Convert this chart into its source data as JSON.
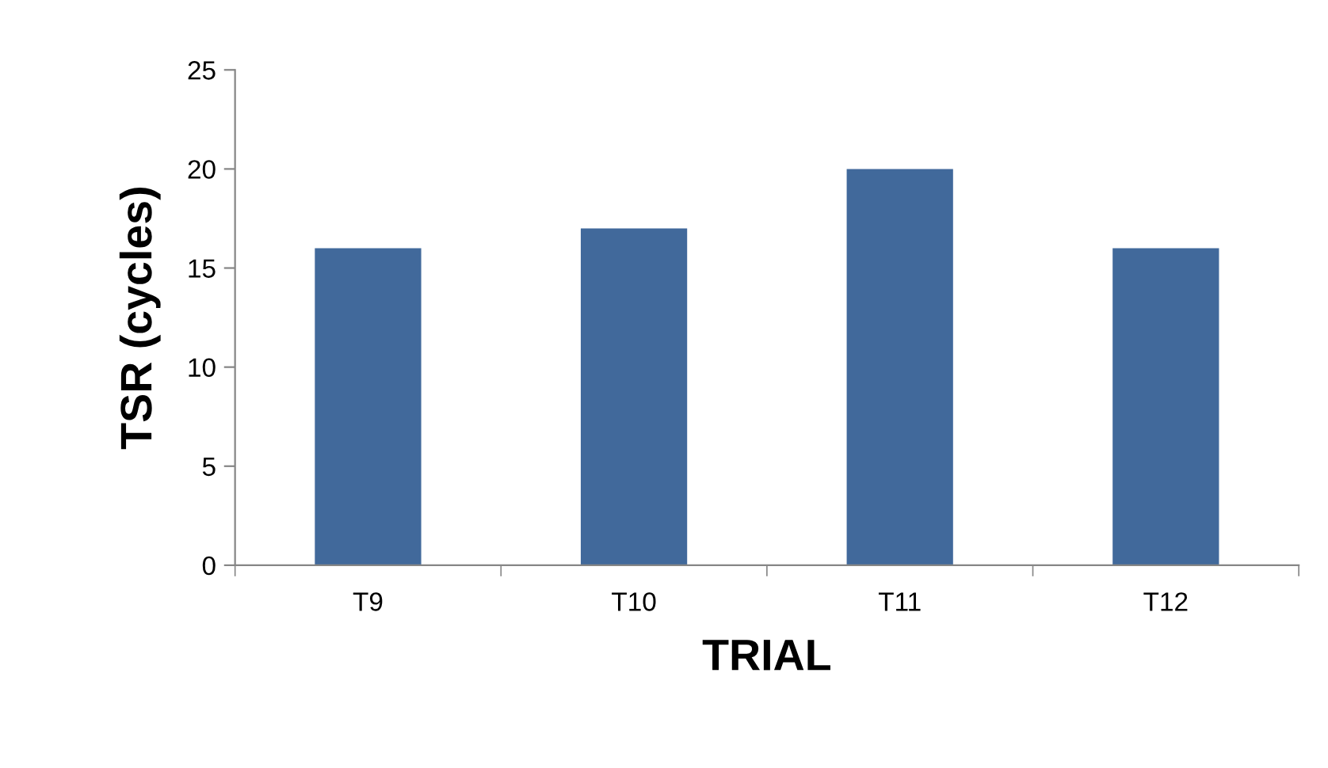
{
  "chart_data": {
    "type": "bar",
    "xlabel": "TRIAL",
    "ylabel": "TSR (cycles)",
    "categories": [
      "T9",
      "T10",
      "T11",
      "T12"
    ],
    "series": [
      {
        "color": "#41699b",
        "values": [
          16,
          17,
          20,
          16
        ]
      }
    ],
    "ylim": [
      0,
      25
    ],
    "yticks": [
      0,
      5,
      10,
      15,
      20,
      25
    ],
    "grid": false
  }
}
